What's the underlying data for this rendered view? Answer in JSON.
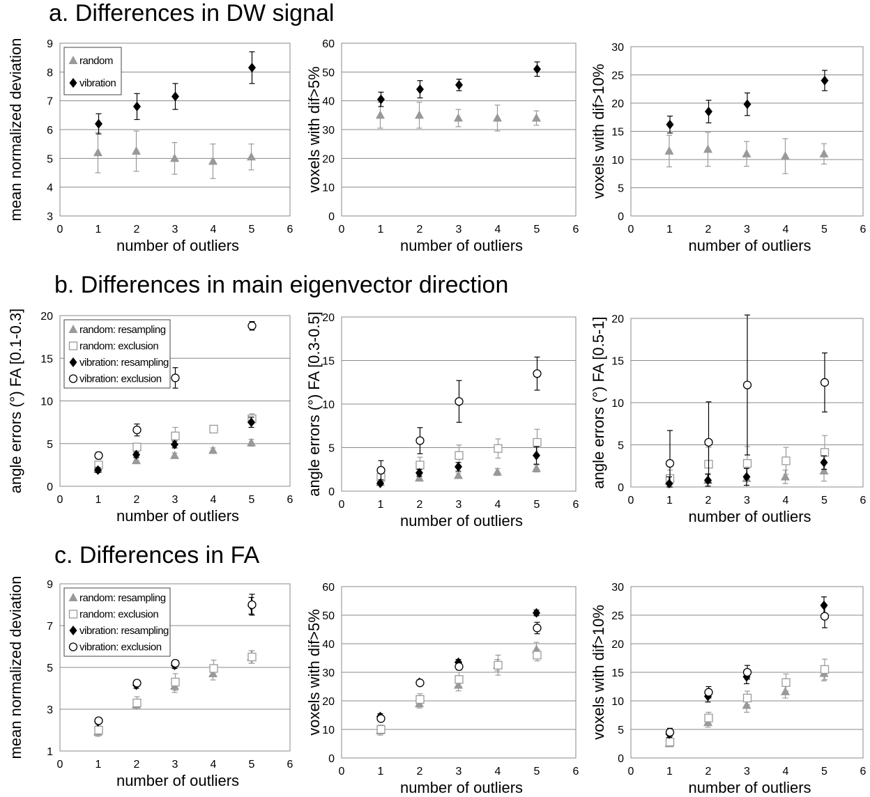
{
  "sections": [
    {
      "title": "a. Differences in DW signal"
    },
    {
      "title": "b. Differences in main eigenvector direction"
    },
    {
      "title": "c. Differences in FA"
    }
  ],
  "colors": {
    "random": "#999999",
    "vibration": "#000000",
    "grid": "#888888"
  },
  "chart_data": [
    {
      "type": "scatter",
      "section": 0,
      "xlabel": "number of outliers",
      "ylabel": "mean normalized deviation",
      "xlim": [
        0,
        6
      ],
      "ylim": [
        3,
        9
      ],
      "xticks": [
        0,
        1,
        2,
        3,
        4,
        5,
        6
      ],
      "yticks": [
        3,
        4,
        5,
        6,
        7,
        8,
        9
      ],
      "grid": true,
      "legend": {
        "placement": "top-left"
      },
      "series": [
        {
          "name": "random",
          "marker": "triangle",
          "x": [
            1,
            2,
            3,
            4,
            5
          ],
          "values": [
            5.2,
            5.25,
            5.0,
            4.9,
            5.05
          ],
          "err": [
            0.7,
            0.7,
            0.55,
            0.6,
            0.45
          ]
        },
        {
          "name": "vibration",
          "marker": "diamond",
          "x": [
            1,
            2,
            3,
            5
          ],
          "values": [
            6.2,
            6.8,
            7.15,
            8.15
          ],
          "err": [
            0.35,
            0.45,
            0.45,
            0.55
          ]
        }
      ]
    },
    {
      "type": "scatter",
      "section": 0,
      "xlabel": "number of outliers",
      "ylabel": "voxels with dif>5%",
      "xlim": [
        0,
        6
      ],
      "ylim": [
        0,
        60
      ],
      "xticks": [
        0,
        1,
        2,
        3,
        4,
        5,
        6
      ],
      "yticks": [
        0,
        10,
        20,
        30,
        40,
        50,
        60
      ],
      "grid": true,
      "series": [
        {
          "marker": "triangle",
          "color": "random",
          "x": [
            1,
            2,
            3,
            4,
            5
          ],
          "values": [
            35,
            35,
            34,
            34,
            34
          ],
          "err": [
            4.5,
            4.5,
            3,
            4.5,
            2.5
          ]
        },
        {
          "marker": "diamond",
          "color": "vibration",
          "x": [
            1,
            2,
            3,
            5
          ],
          "values": [
            40.5,
            44,
            45.5,
            51
          ],
          "err": [
            2.5,
            3,
            2,
            2.5
          ]
        }
      ]
    },
    {
      "type": "scatter",
      "section": 0,
      "xlabel": "number of outliers",
      "ylabel": "voxels with dif>10%",
      "xlim": [
        0,
        6
      ],
      "ylim": [
        0,
        30
      ],
      "xticks": [
        0,
        1,
        2,
        3,
        4,
        5,
        6
      ],
      "yticks": [
        0,
        5,
        10,
        15,
        20,
        25,
        30
      ],
      "grid": true,
      "series": [
        {
          "marker": "triangle",
          "color": "random",
          "x": [
            1,
            2,
            3,
            4,
            5
          ],
          "values": [
            11.5,
            11.8,
            11.0,
            10.6,
            11.0
          ],
          "err": [
            2.8,
            3,
            2.2,
            3.1,
            1.8
          ]
        },
        {
          "marker": "diamond",
          "color": "vibration",
          "x": [
            1,
            2,
            3,
            5
          ],
          "values": [
            16.2,
            18.5,
            19.8,
            24
          ],
          "err": [
            1.5,
            2,
            2,
            1.8
          ]
        }
      ]
    },
    {
      "type": "scatter",
      "section": 1,
      "xlabel": "number of outliers",
      "ylabel": "angle errors (°) FA [0.1-0.3]",
      "xlim": [
        0,
        6
      ],
      "ylim": [
        0,
        20
      ],
      "xticks": [
        0,
        1,
        2,
        3,
        4,
        5,
        6
      ],
      "yticks": [
        0,
        5,
        10,
        15,
        20
      ],
      "grid": true,
      "legend": {
        "placement": "top-left"
      },
      "series": [
        {
          "name": "random: resampling",
          "marker": "triangle",
          "color": "random",
          "x": [
            1,
            2,
            3,
            4,
            5
          ],
          "values": [
            2.0,
            3.0,
            3.6,
            4.2,
            5.1
          ],
          "err": [
            0.3,
            0.3,
            0.3,
            0.3,
            0.4
          ]
        },
        {
          "name": "random: exclusion",
          "marker": "square",
          "color": "random",
          "x": [
            1,
            2,
            3,
            4,
            5
          ],
          "values": [
            2.5,
            4.6,
            5.9,
            6.7,
            7.9
          ],
          "err": [
            0.3,
            0.4,
            1.0,
            0.4,
            0.6
          ]
        },
        {
          "name": "vibration: resampling",
          "marker": "diamond",
          "color": "vibration",
          "x": [
            1,
            2,
            3,
            5
          ],
          "values": [
            1.9,
            3.7,
            4.9,
            7.5
          ],
          "err": [
            0.3,
            0.3,
            0.4,
            0.6
          ]
        },
        {
          "name": "vibration: exclusion",
          "marker": "circle",
          "color": "vibration",
          "x": [
            1,
            2,
            3,
            5
          ],
          "values": [
            3.6,
            6.6,
            12.7,
            18.8
          ],
          "err": [
            0.4,
            0.7,
            1.2,
            0.5
          ]
        }
      ]
    },
    {
      "type": "scatter",
      "section": 1,
      "xlabel": "number of outliers",
      "ylabel": "angle errors (°) FA [0.3-0.5]",
      "xlim": [
        0,
        6
      ],
      "ylim": [
        0,
        20
      ],
      "xticks": [
        0,
        1,
        2,
        3,
        4,
        5,
        6
      ],
      "yticks": [
        0,
        5,
        10,
        15,
        20
      ],
      "grid": true,
      "series": [
        {
          "marker": "triangle",
          "color": "random",
          "x": [
            1,
            2,
            3,
            4,
            5
          ],
          "values": [
            1.0,
            1.5,
            1.8,
            2.2,
            2.6
          ],
          "err": [
            0.2,
            0.3,
            0.3,
            0.4,
            0.4
          ]
        },
        {
          "marker": "square",
          "color": "random",
          "x": [
            1,
            2,
            3,
            4,
            5
          ],
          "values": [
            1.6,
            3.0,
            4.1,
            4.9,
            5.6
          ],
          "err": [
            0.3,
            0.9,
            1.2,
            1.1,
            1.5
          ]
        },
        {
          "marker": "diamond",
          "color": "vibration",
          "x": [
            1,
            2,
            3,
            5
          ],
          "values": [
            0.9,
            2.1,
            2.8,
            4.1
          ],
          "err": [
            0.2,
            0.4,
            0.5,
            1.0
          ]
        },
        {
          "marker": "circle",
          "color": "vibration",
          "x": [
            1,
            2,
            3,
            5
          ],
          "values": [
            2.4,
            5.8,
            10.3,
            13.5
          ],
          "err": [
            1.1,
            1.5,
            2.4,
            1.9
          ]
        }
      ]
    },
    {
      "type": "scatter",
      "section": 1,
      "xlabel": "number of outliers",
      "ylabel": "angle errors (°) FA [0.5-1]",
      "xlim": [
        0,
        6
      ],
      "ylim": [
        0,
        20
      ],
      "xticks": [
        0,
        1,
        2,
        3,
        4,
        5,
        6
      ],
      "yticks": [
        0,
        5,
        10,
        15,
        20
      ],
      "grid": true,
      "series": [
        {
          "marker": "triangle",
          "color": "random",
          "x": [
            1,
            2,
            3,
            4,
            5
          ],
          "values": [
            0.7,
            0.8,
            1.0,
            1.2,
            1.9
          ],
          "err": [
            0.5,
            0.8,
            1.2,
            0.8,
            1.2
          ]
        },
        {
          "marker": "square",
          "color": "random",
          "x": [
            1,
            2,
            3,
            4,
            5
          ],
          "values": [
            1.0,
            2.7,
            2.8,
            3.1,
            4.1
          ],
          "err": [
            1.0,
            2.0,
            2.0,
            1.6,
            2.0
          ]
        },
        {
          "marker": "diamond",
          "color": "vibration",
          "x": [
            1,
            2,
            3,
            5
          ],
          "values": [
            0.4,
            0.8,
            1.2,
            2.9
          ],
          "err": [
            0.8,
            0.7,
            1.0,
            0.8
          ]
        },
        {
          "marker": "circle",
          "color": "vibration",
          "x": [
            1,
            2,
            3,
            5
          ],
          "values": [
            2.8,
            5.3,
            12.1,
            12.4
          ],
          "err": [
            3.9,
            4.8,
            8.3,
            3.5
          ]
        }
      ]
    },
    {
      "type": "scatter",
      "section": 2,
      "xlabel": "number of outliers",
      "ylabel": "mean normalized deviation",
      "xlim": [
        0,
        6
      ],
      "ylim": [
        1,
        9
      ],
      "xticks": [
        0,
        1,
        2,
        3,
        4,
        5,
        6
      ],
      "yticks": [
        1,
        3,
        5,
        7,
        9
      ],
      "grid": true,
      "legend": {
        "placement": "top-left"
      },
      "series": [
        {
          "name": "random: resampling",
          "marker": "triangle",
          "color": "random",
          "x": [
            1,
            2,
            3,
            4,
            5
          ],
          "values": [
            1.9,
            3.2,
            4.1,
            4.7,
            5.5
          ],
          "err": [
            0.2,
            0.2,
            0.3,
            0.3,
            0.3
          ]
        },
        {
          "name": "random: exclusion",
          "marker": "square",
          "color": "random",
          "x": [
            1,
            2,
            3,
            4,
            5
          ],
          "values": [
            2.0,
            3.3,
            4.3,
            4.95,
            5.5
          ],
          "err": [
            0.2,
            0.3,
            0.4,
            0.4,
            0.3
          ]
        },
        {
          "name": "vibration: resampling",
          "marker": "diamond",
          "color": "vibration",
          "x": [
            1,
            2,
            3,
            5
          ],
          "values": [
            2.4,
            4.15,
            5.1,
            7.95
          ],
          "err": [
            0.1,
            0.15,
            0.15,
            0.4
          ]
        },
        {
          "name": "vibration: exclusion",
          "marker": "circle",
          "color": "vibration",
          "x": [
            1,
            2,
            3,
            5
          ],
          "values": [
            2.45,
            4.25,
            5.2,
            8.0
          ],
          "err": [
            0.1,
            0.15,
            0.15,
            0.5
          ]
        }
      ]
    },
    {
      "type": "scatter",
      "section": 2,
      "xlabel": "number of outliers",
      "ylabel": "voxels with dif>5%",
      "xlim": [
        0,
        6
      ],
      "ylim": [
        0,
        60
      ],
      "xticks": [
        0,
        1,
        2,
        3,
        4,
        5,
        6
      ],
      "yticks": [
        0,
        10,
        20,
        30,
        40,
        50,
        60
      ],
      "grid": true,
      "series": [
        {
          "marker": "triangle",
          "color": "random",
          "x": [
            1,
            2,
            3,
            4,
            5
          ],
          "values": [
            9.5,
            19,
            25.5,
            32.5,
            38
          ],
          "err": [
            1.5,
            1.5,
            2,
            2,
            2.5
          ]
        },
        {
          "marker": "square",
          "color": "random",
          "x": [
            1,
            2,
            3,
            4,
            5
          ],
          "values": [
            10,
            20.5,
            27.5,
            32.5,
            36
          ],
          "err": [
            1.5,
            2,
            2.5,
            3.5,
            2
          ]
        },
        {
          "marker": "diamond",
          "color": "vibration",
          "x": [
            1,
            2,
            3,
            5
          ],
          "values": [
            14.5,
            26.5,
            33.5,
            50.8
          ],
          "err": [
            1,
            0.8,
            1,
            1
          ]
        },
        {
          "marker": "circle",
          "color": "vibration",
          "x": [
            1,
            2,
            3,
            5
          ],
          "values": [
            13.8,
            26.3,
            32,
            45.5
          ],
          "err": [
            1,
            0.8,
            1.2,
            2
          ]
        }
      ]
    },
    {
      "type": "scatter",
      "section": 2,
      "xlabel": "number of outliers",
      "ylabel": "voxels with dif>10%",
      "xlim": [
        0,
        6
      ],
      "ylim": [
        0,
        30
      ],
      "xticks": [
        0,
        1,
        2,
        3,
        4,
        5,
        6
      ],
      "yticks": [
        0,
        5,
        10,
        15,
        20,
        25,
        30
      ],
      "grid": true,
      "series": [
        {
          "marker": "triangle",
          "color": "random",
          "x": [
            1,
            2,
            3,
            4,
            5
          ],
          "values": [
            2.5,
            6.2,
            9.2,
            11.6,
            14.8
          ],
          "err": [
            0.5,
            0.8,
            1.2,
            1.1,
            1.3
          ]
        },
        {
          "marker": "square",
          "color": "random",
          "x": [
            1,
            2,
            3,
            4,
            5
          ],
          "values": [
            2.8,
            7.0,
            10.5,
            13.2,
            15.5
          ],
          "err": [
            0.5,
            1.0,
            1.2,
            1.5,
            1.8
          ]
        },
        {
          "marker": "diamond",
          "color": "vibration",
          "x": [
            1,
            2,
            3,
            5
          ],
          "values": [
            4.2,
            10.8,
            14.2,
            26.7
          ],
          "err": [
            0.6,
            1.0,
            1.2,
            1.5
          ]
        },
        {
          "marker": "circle",
          "color": "vibration",
          "x": [
            1,
            2,
            3,
            5
          ],
          "values": [
            4.5,
            11.5,
            15.0,
            24.8
          ],
          "err": [
            0.7,
            1.0,
            1.2,
            2.0
          ]
        }
      ]
    }
  ]
}
